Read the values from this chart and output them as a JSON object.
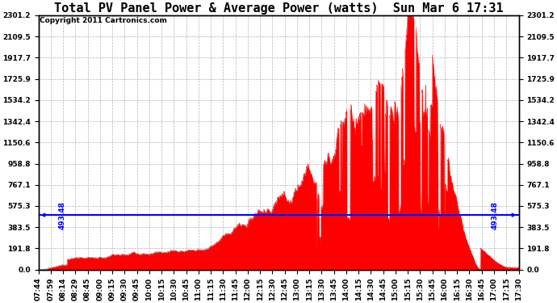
{
  "title": "Total PV Panel Power & Average Power (watts)  Sun Mar 6 17:31",
  "copyright": "Copyright 2011 Cartronics.com",
  "avg_power": 493.48,
  "ymax": 2301.2,
  "yticks": [
    0.0,
    191.8,
    383.5,
    575.3,
    767.1,
    958.8,
    1150.6,
    1342.4,
    1534.2,
    1725.9,
    1917.7,
    2109.5,
    2301.2
  ],
  "xtick_labels": [
    "07:44",
    "07:59",
    "08:14",
    "08:29",
    "08:45",
    "09:00",
    "09:15",
    "09:30",
    "09:45",
    "10:00",
    "10:15",
    "10:30",
    "10:45",
    "11:00",
    "11:15",
    "11:30",
    "11:45",
    "12:00",
    "12:15",
    "12:30",
    "12:45",
    "13:00",
    "13:15",
    "13:30",
    "13:45",
    "14:00",
    "14:15",
    "14:30",
    "14:45",
    "15:00",
    "15:15",
    "15:30",
    "15:45",
    "16:00",
    "16:15",
    "16:30",
    "16:45",
    "17:00",
    "17:15",
    "17:30"
  ],
  "bar_color": "#FF0000",
  "avg_line_color": "#0000FF",
  "bg_color": "#FFFFFF",
  "plot_bg_color": "#FFFFFF",
  "grid_color": "#AAAAAA",
  "title_fontsize": 11,
  "tick_fontsize": 6.5,
  "copyright_fontsize": 6.5,
  "avg_label_fontsize": 6.5
}
